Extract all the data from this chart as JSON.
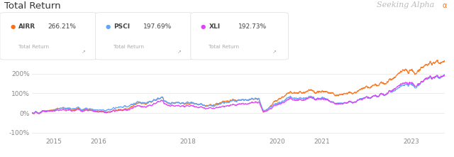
{
  "title": "Total Return",
  "seeking_alpha_text": "Seeking Alpha",
  "background_color": "#ffffff",
  "plot_bg_color": "#ffffff",
  "grid_color": "#e8e8e8",
  "yticks": [
    -100,
    0,
    100,
    200
  ],
  "ytick_labels": [
    "-100%",
    "0%",
    "100%",
    "200%"
  ],
  "xtick_labels": [
    "2015",
    "2016",
    "2018",
    "2020",
    "2021",
    "2023"
  ],
  "ylim": [
    -120,
    295
  ],
  "series": {
    "AIRR": {
      "color": "#f97316",
      "pct": "266.21%",
      "label": "AIRR"
    },
    "PSCI": {
      "color": "#60a5fa",
      "pct": "197.69%",
      "label": "PSCI"
    },
    "XLI": {
      "color": "#e040fb",
      "pct": "192.73%",
      "label": "XLI"
    }
  },
  "legend_subtitle": "Total Return",
  "n_points": 2400
}
